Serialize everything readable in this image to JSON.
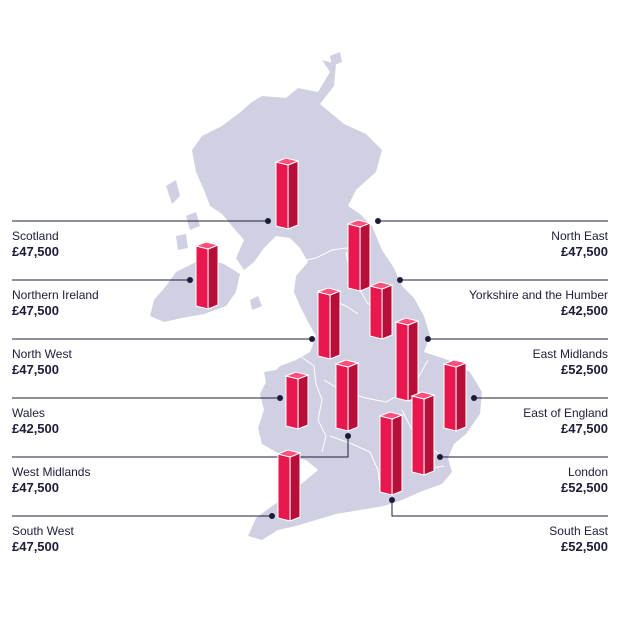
{
  "colors": {
    "land": "#cfd1e3",
    "border": "#ffffff",
    "bar_front": "#e8174e",
    "bar_side": "#b80f3a",
    "bar_top": "#ff4f7a",
    "bar_outline": "#ffffff",
    "leader": "#1c1c3a",
    "text": "#1c1c3a"
  },
  "regions": [
    {
      "id": "scotland",
      "name": "Scotland",
      "salary": "£47,500",
      "side": "left"
    },
    {
      "id": "northern-ireland",
      "name": "Northern Ireland",
      "salary": "£47,500",
      "side": "left"
    },
    {
      "id": "north-west",
      "name": "North West",
      "salary": "£47,500",
      "side": "left"
    },
    {
      "id": "wales",
      "name": "Wales",
      "salary": "£42,500",
      "side": "left"
    },
    {
      "id": "west-midlands",
      "name": "West Midlands",
      "salary": "£47,500",
      "side": "left"
    },
    {
      "id": "south-west",
      "name": "South West",
      "salary": "£47,500",
      "side": "left"
    },
    {
      "id": "north-east",
      "name": "North East",
      "salary": "£47,500",
      "side": "right"
    },
    {
      "id": "yorkshire",
      "name": "Yorkshire and the Humber",
      "salary": "£42,500",
      "side": "right"
    },
    {
      "id": "east-midlands",
      "name": "East Midlands",
      "salary": "£52,500",
      "side": "right"
    },
    {
      "id": "east-of-england",
      "name": "East of England",
      "salary": "£47,500",
      "side": "right"
    },
    {
      "id": "london",
      "name": "London",
      "salary": "£52,500",
      "side": "right"
    },
    {
      "id": "south-east",
      "name": "South East",
      "salary": "£52,500",
      "side": "right"
    }
  ]
}
